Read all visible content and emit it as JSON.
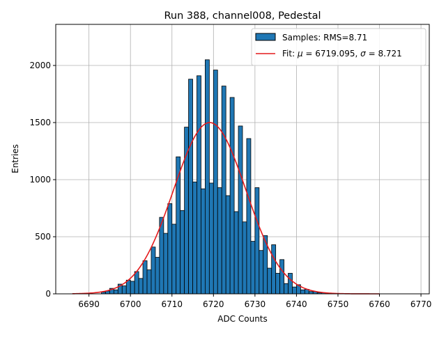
{
  "chart_data": {
    "type": "histogram",
    "title": "Run 388, channel008, Pedestal",
    "xlabel": "ADC Counts",
    "ylabel": "Entries",
    "xlim": [
      6682,
      6772
    ],
    "ylim": [
      0,
      2360
    ],
    "grid": true,
    "legend_position": "top-right",
    "x_ticks": [
      6690,
      6700,
      6710,
      6720,
      6730,
      6740,
      6750,
      6760,
      6770
    ],
    "y_ticks": [
      0,
      500,
      1000,
      1500,
      2000
    ],
    "colors": {
      "bars": "#1f77b4",
      "bar_edge": "#000000",
      "fit": "#e41a1c"
    },
    "series": [
      {
        "name": "Samples: RMS=8.71",
        "kind": "histogram",
        "bin_width": 1,
        "bin_start": [
          6693,
          6694,
          6695,
          6696,
          6697,
          6698,
          6699,
          6700,
          6701,
          6702,
          6703,
          6704,
          6705,
          6706,
          6707,
          6708,
          6709,
          6710,
          6711,
          6712,
          6713,
          6714,
          6715,
          6716,
          6717,
          6718,
          6719,
          6720,
          6721,
          6722,
          6723,
          6724,
          6725,
          6726,
          6727,
          6728,
          6729,
          6730,
          6731,
          6732,
          6733,
          6734,
          6735,
          6736,
          6737,
          6738,
          6739,
          6740,
          6741,
          6742,
          6743,
          6744,
          6745,
          6746
        ],
        "counts": [
          15,
          25,
          48,
          35,
          85,
          70,
          120,
          110,
          195,
          135,
          290,
          210,
          410,
          320,
          670,
          530,
          790,
          610,
          1200,
          730,
          1460,
          1880,
          980,
          1910,
          920,
          2050,
          970,
          1960,
          930,
          1820,
          860,
          1720,
          720,
          1470,
          630,
          1360,
          460,
          930,
          380,
          510,
          225,
          430,
          180,
          300,
          90,
          180,
          60,
          80,
          35,
          40,
          20,
          20,
          10,
          10
        ]
      },
      {
        "name": "Fit: μ = 6719.095, σ = 8.721",
        "kind": "gaussian_fit",
        "mu": 6719.095,
        "sigma": 8.721,
        "amplitude": 1500,
        "x_range": [
          6686,
          6760
        ]
      }
    ],
    "legend_entries": [
      {
        "label_plain": "Samples: RMS=8.71"
      },
      {
        "label_pre": "Fit: ",
        "sym_mu": "μ",
        "label_mid": " = 6719.095, ",
        "sym_sigma": "σ",
        "label_post": " = 8.721"
      }
    ]
  }
}
